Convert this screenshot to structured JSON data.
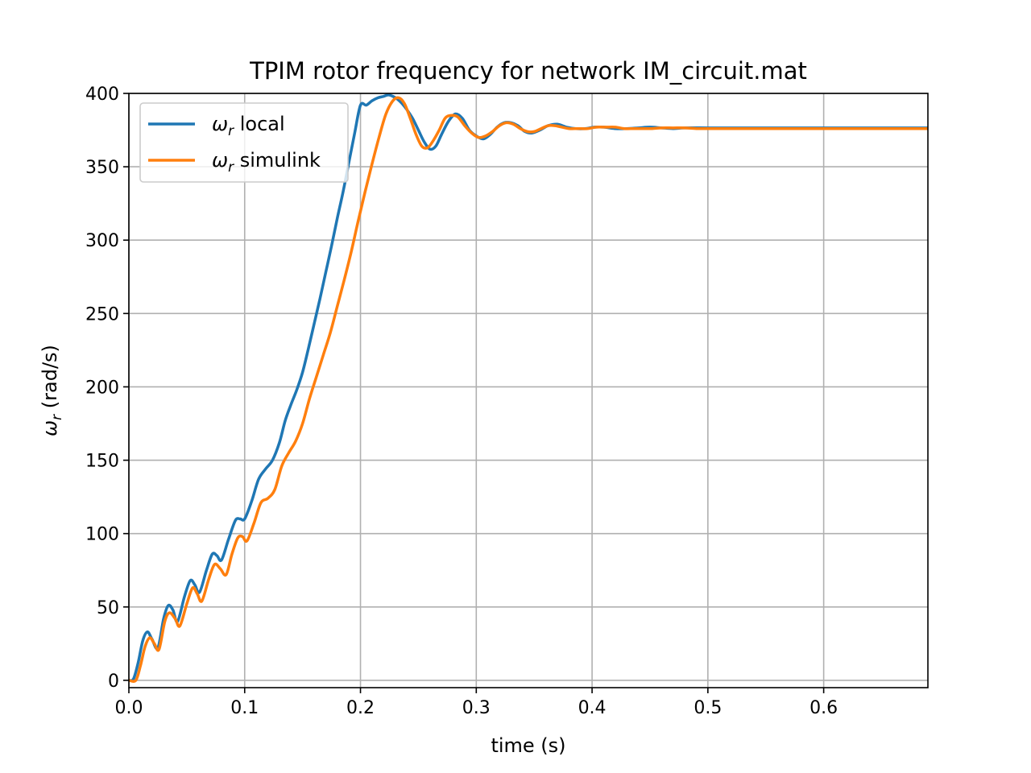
{
  "chart_data": {
    "type": "line",
    "title": "TPIM rotor frequency for network IM_circuit.mat",
    "xlabel": "time (s)",
    "ylabel": {
      "symbol": "ω",
      "subscript": "r",
      "suffix": " (rad/s)"
    },
    "xlim": [
      0.0,
      0.69
    ],
    "ylim": [
      -5,
      400
    ],
    "xticks": [
      0.0,
      0.1,
      0.2,
      0.3,
      0.4,
      0.5,
      0.6
    ],
    "xtick_labels": [
      "0.0",
      "0.1",
      "0.2",
      "0.3",
      "0.4",
      "0.5",
      "0.6"
    ],
    "yticks": [
      0,
      50,
      100,
      150,
      200,
      250,
      300,
      350,
      400
    ],
    "ytick_labels": [
      "0",
      "50",
      "100",
      "150",
      "200",
      "250",
      "300",
      "350",
      "400"
    ],
    "grid": true,
    "legend_position": "top-left",
    "series": [
      {
        "name": "local",
        "legend_label": {
          "symbol": "ω",
          "subscript": "r",
          "suffix": " local"
        },
        "color": "#1f77b4",
        "x": [
          0.0,
          0.004,
          0.008,
          0.012,
          0.016,
          0.02,
          0.025,
          0.03,
          0.034,
          0.038,
          0.042,
          0.048,
          0.053,
          0.057,
          0.061,
          0.067,
          0.072,
          0.076,
          0.08,
          0.086,
          0.092,
          0.096,
          0.1,
          0.106,
          0.112,
          0.118,
          0.124,
          0.13,
          0.135,
          0.14,
          0.145,
          0.15,
          0.155,
          0.16,
          0.165,
          0.17,
          0.175,
          0.18,
          0.185,
          0.19,
          0.195,
          0.2,
          0.205,
          0.21,
          0.215,
          0.22,
          0.224,
          0.228,
          0.232,
          0.236,
          0.24,
          0.245,
          0.25,
          0.255,
          0.26,
          0.265,
          0.27,
          0.276,
          0.282,
          0.288,
          0.294,
          0.3,
          0.306,
          0.312,
          0.318,
          0.324,
          0.33,
          0.336,
          0.342,
          0.348,
          0.355,
          0.362,
          0.37,
          0.378,
          0.386,
          0.394,
          0.402,
          0.41,
          0.42,
          0.43,
          0.44,
          0.45,
          0.46,
          0.47,
          0.48,
          0.5,
          0.52,
          0.54,
          0.56,
          0.58,
          0.6,
          0.62,
          0.64,
          0.66,
          0.69
        ],
        "y": [
          0,
          1,
          12,
          27,
          33,
          28,
          22,
          42,
          51,
          48,
          40,
          57,
          68,
          65,
          60,
          75,
          86,
          85,
          82,
          96,
          109,
          110,
          110,
          122,
          137,
          144,
          150,
          162,
          177,
          188,
          198,
          210,
          226,
          243,
          260,
          278,
          296,
          315,
          333,
          353,
          373,
          392,
          392,
          395,
          397,
          398,
          399,
          398,
          396,
          393,
          389,
          383,
          375,
          367,
          362,
          364,
          372,
          381,
          386,
          383,
          375,
          371,
          369,
          372,
          377,
          380,
          380,
          378,
          374,
          373,
          375,
          378,
          379,
          377,
          376,
          376,
          377,
          377,
          376,
          376,
          376.5,
          377,
          376.5,
          376,
          376.5,
          376.5,
          376.5,
          376.5,
          376.5,
          376.5,
          376.5,
          376.5,
          376.5,
          376.5,
          376.5
        ]
      },
      {
        "name": "simulink",
        "legend_label": {
          "symbol": "ω",
          "subscript": "r",
          "suffix": " simulink"
        },
        "color": "#ff7f0e",
        "x": [
          0.0,
          0.006,
          0.01,
          0.014,
          0.018,
          0.022,
          0.026,
          0.031,
          0.035,
          0.04,
          0.044,
          0.05,
          0.055,
          0.059,
          0.063,
          0.069,
          0.074,
          0.079,
          0.084,
          0.089,
          0.094,
          0.098,
          0.102,
          0.108,
          0.114,
          0.12,
          0.126,
          0.132,
          0.138,
          0.144,
          0.15,
          0.156,
          0.162,
          0.168,
          0.174,
          0.18,
          0.186,
          0.192,
          0.198,
          0.204,
          0.21,
          0.216,
          0.222,
          0.228,
          0.233,
          0.238,
          0.243,
          0.248,
          0.253,
          0.258,
          0.263,
          0.268,
          0.273,
          0.278,
          0.284,
          0.29,
          0.296,
          0.302,
          0.308,
          0.314,
          0.32,
          0.326,
          0.332,
          0.338,
          0.344,
          0.35,
          0.356,
          0.362,
          0.368,
          0.374,
          0.38,
          0.388,
          0.396,
          0.404,
          0.412,
          0.42,
          0.428,
          0.436,
          0.444,
          0.452,
          0.46,
          0.47,
          0.48,
          0.49,
          0.5,
          0.52,
          0.54,
          0.56,
          0.58,
          0.6,
          0.62,
          0.64,
          0.66,
          0.69
        ],
        "y": [
          0,
          0,
          10,
          23,
          29,
          25,
          21,
          40,
          46,
          42,
          37,
          52,
          63,
          59,
          54,
          69,
          79,
          76,
          72,
          86,
          97,
          98,
          95,
          107,
          121,
          124,
          130,
          146,
          155,
          163,
          175,
          192,
          207,
          222,
          237,
          255,
          273,
          292,
          313,
          333,
          352,
          370,
          386,
          395,
          397,
          393,
          383,
          372,
          364,
          363,
          368,
          375,
          383,
          385,
          384,
          378,
          373,
          370,
          371,
          374,
          378,
          380,
          379,
          376,
          374,
          374,
          376,
          378,
          378,
          377,
          376,
          376,
          376,
          377,
          377,
          377,
          376,
          376,
          376,
          376,
          376.5,
          376.5,
          376.5,
          376,
          376,
          376,
          376,
          376,
          376,
          376,
          376,
          376,
          376,
          376
        ]
      }
    ]
  }
}
